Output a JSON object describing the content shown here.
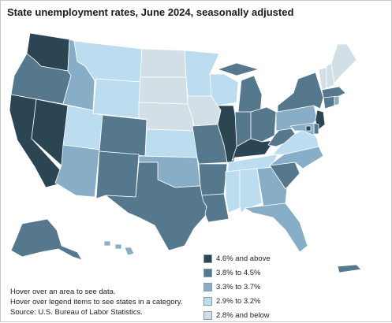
{
  "chart_data": {
    "type": "choropleth-map",
    "title": "State unemployment rates, June 2024, seasonally adjusted",
    "colors": {
      "c1": "#2b4553",
      "c2": "#56788d",
      "c3": "#87aec6",
      "c4": "#bcdcef",
      "c5": "#d3dfe6"
    },
    "legend": {
      "placement": "bottom-center",
      "items": [
        {
          "key": "c1",
          "label": "4.6% and above"
        },
        {
          "key": "c2",
          "label": "3.8% to 4.5%"
        },
        {
          "key": "c3",
          "label": "3.3% to 3.7%"
        },
        {
          "key": "c4",
          "label": "2.9% to 3.2%"
        },
        {
          "key": "c5",
          "label": "2.8% and below"
        }
      ]
    },
    "states": {
      "WA": "c1",
      "OR": "c2",
      "CA": "c1",
      "NV": "c1",
      "ID": "c3",
      "MT": "c4",
      "WY": "c4",
      "UT": "c4",
      "AZ": "c3",
      "CO": "c2",
      "NM": "c2",
      "ND": "c5",
      "SD": "c5",
      "NE": "c5",
      "KS": "c4",
      "OK": "c3",
      "TX": "c2",
      "MN": "c4",
      "IA": "c5",
      "MO": "c2",
      "AR": "c2",
      "LA": "c2",
      "WI": "c4",
      "IL": "c1",
      "MI": "c2",
      "IN": "c2",
      "OH": "c2",
      "KY": "c1",
      "TN": "c4",
      "MS": "c4",
      "AL": "c4",
      "GA": "c3",
      "FL": "c3",
      "SC": "c2",
      "NC": "c3",
      "VA": "c4",
      "WV": "c2",
      "PA": "c3",
      "NY": "c2",
      "NJ": "c1",
      "DE": "c2",
      "MD": "c3",
      "DC": "c1",
      "CT": "c2",
      "RI": "c3",
      "MA": "c2",
      "VT": "c5",
      "NH": "c5",
      "ME": "c5",
      "AK": "c2",
      "HI": "c3",
      "PR": "c2"
    },
    "notes": [
      "Hover over an area to see data.",
      "Hover over legend items to see states in a category.",
      "Source: U.S. Bureau of Labor Statistics."
    ]
  }
}
